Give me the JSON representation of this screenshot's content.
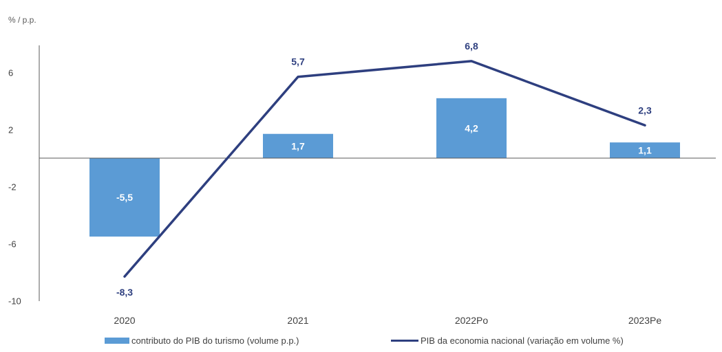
{
  "chart_data": {
    "type": "bar+line",
    "title": "",
    "unit_label": "% / p.p.",
    "categories": [
      "2020",
      "2021",
      "2022Po",
      "2023Pe"
    ],
    "yticks": [
      6,
      2,
      -2,
      -6,
      -10
    ],
    "ylim": [
      -10,
      10
    ],
    "grid": false,
    "legend_position": "bottom",
    "series": [
      {
        "name": "contributo do PIB do turismo (volume p.p.)",
        "kind": "bar",
        "values": [
          -5.5,
          1.7,
          4.2,
          1.1
        ],
        "labels": [
          "-5,5",
          "1,7",
          "4,2",
          "1,1"
        ],
        "color": "#5b9bd5"
      },
      {
        "name": "PIB da economia nacional (variação em volume %)",
        "kind": "line",
        "values": [
          -8.3,
          5.7,
          6.8,
          2.3
        ],
        "labels": [
          "-8,3",
          "5,7",
          "6,8",
          "2,3"
        ],
        "color": "#2e3f7f"
      }
    ]
  }
}
